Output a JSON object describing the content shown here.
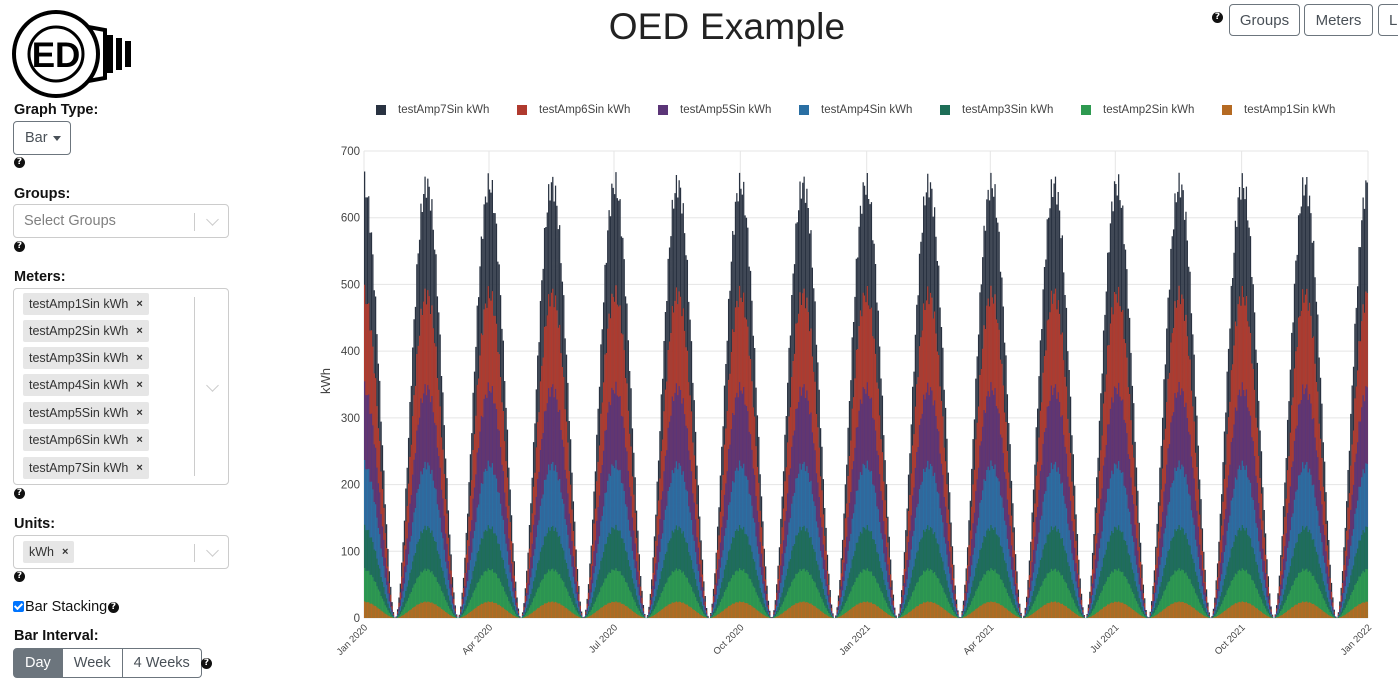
{
  "page": {
    "title": "OED Example"
  },
  "logo": {
    "text": "ED",
    "icon": "lightbulb-logo"
  },
  "navbar": {
    "help_icon": "question-circle-icon",
    "buttons": [
      "Groups",
      "Meters",
      "Lo"
    ]
  },
  "sidebar": {
    "graph_type": {
      "label": "Graph Type:",
      "value": "Bar"
    },
    "groups": {
      "label": "Groups:",
      "placeholder": "Select Groups"
    },
    "meters": {
      "label": "Meters:",
      "selected": [
        "testAmp1Sin kWh",
        "testAmp2Sin kWh",
        "testAmp3Sin kWh",
        "testAmp4Sin kWh",
        "testAmp5Sin kWh",
        "testAmp6Sin kWh",
        "testAmp7Sin kWh"
      ]
    },
    "units": {
      "label": "Units:",
      "selected": [
        "kWh"
      ]
    },
    "bar_stacking": {
      "label": "Bar Stacking",
      "checked": true
    },
    "bar_interval": {
      "label": "Bar Interval:",
      "options": [
        "Day",
        "Week",
        "4 Weeks"
      ],
      "active": "Day"
    },
    "remove_symbol": "×"
  },
  "chart_data": {
    "type": "bar",
    "stacked": true,
    "ylabel": "kWh",
    "ylim": [
      0,
      700
    ],
    "yticks": [
      0,
      100,
      200,
      300,
      400,
      500,
      600,
      700
    ],
    "x_range": [
      "2020-01-01",
      "2022-01-01"
    ],
    "xticks": [
      "Jan 2020",
      "Apr 2020",
      "Jul 2020",
      "Oct 2020",
      "Jan 2021",
      "Apr 2021",
      "Jul 2021",
      "Oct 2021",
      "Jan 2022"
    ],
    "grid": true,
    "legend_position": "top",
    "bar_interval": "day",
    "pattern": "rectified sine, one hump every ~45 days, zero at trough",
    "series": [
      {
        "name": "testAmp7Sin kWh",
        "color": "#293241",
        "peak": 670
      },
      {
        "name": "testAmp6Sin kWh",
        "color": "#b03a2e",
        "peak": 500
      },
      {
        "name": "testAmp5Sin kWh",
        "color": "#5b3577",
        "peak": 355
      },
      {
        "name": "testAmp4Sin kWh",
        "color": "#2a6fa3",
        "peak": 237
      },
      {
        "name": "testAmp3Sin kWh",
        "color": "#1e6e57",
        "peak": 140
      },
      {
        "name": "testAmp2Sin kWh",
        "color": "#2e9a50",
        "peak": 75
      },
      {
        "name": "testAmp1Sin kWh",
        "color": "#b56a22",
        "peak": 25
      }
    ]
  }
}
